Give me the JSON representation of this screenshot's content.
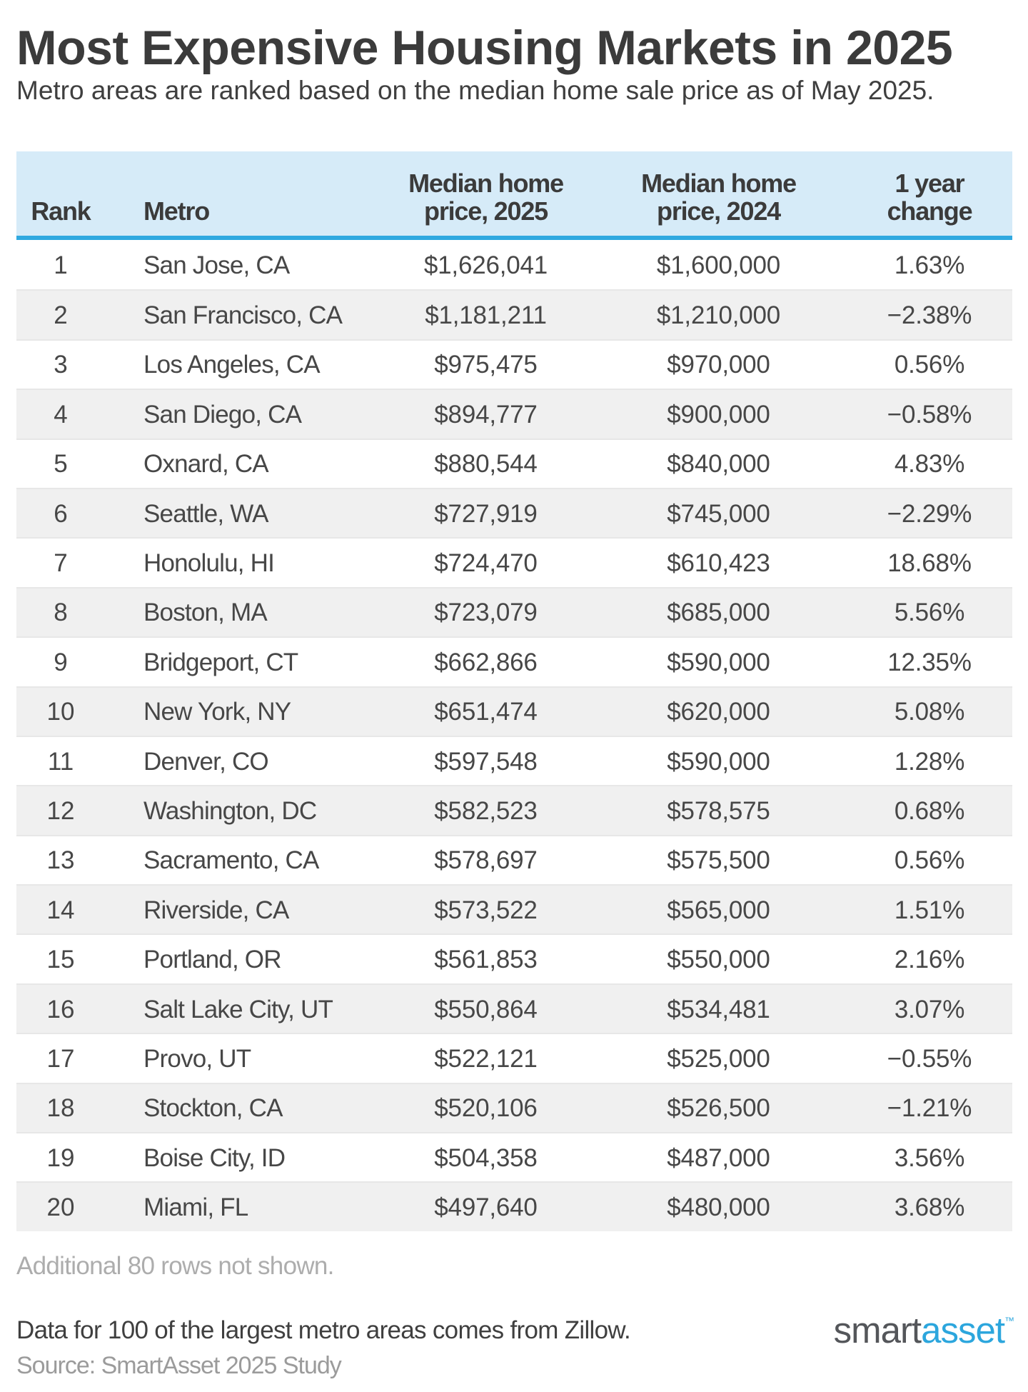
{
  "header": {
    "title": "Most Expensive Housing Markets in 2025",
    "subtitle": "Metro areas are ranked based on the median home sale price as of May 2025."
  },
  "chart_data": {
    "type": "table",
    "title": "Most Expensive Housing Markets in 2025",
    "subtitle": "Metro areas are ranked based on the median home sale price as of May 2025.",
    "columns": [
      "Rank",
      "Metro",
      "Median home\nprice, 2025",
      "Median home\nprice, 2024",
      "1 year\nchange"
    ],
    "rows": [
      [
        "1",
        "San Jose, CA",
        "$1,626,041",
        "$1,600,000",
        "1.63%"
      ],
      [
        "2",
        "San Francisco, CA",
        "$1,181,211",
        "$1,210,000",
        "−2.38%"
      ],
      [
        "3",
        "Los Angeles, CA",
        "$975,475",
        "$970,000",
        "0.56%"
      ],
      [
        "4",
        "San Diego, CA",
        "$894,777",
        "$900,000",
        "−0.58%"
      ],
      [
        "5",
        "Oxnard, CA",
        "$880,544",
        "$840,000",
        "4.83%"
      ],
      [
        "6",
        "Seattle, WA",
        "$727,919",
        "$745,000",
        "−2.29%"
      ],
      [
        "7",
        "Honolulu, HI",
        "$724,470",
        "$610,423",
        "18.68%"
      ],
      [
        "8",
        "Boston, MA",
        "$723,079",
        "$685,000",
        "5.56%"
      ],
      [
        "9",
        "Bridgeport, CT",
        "$662,866",
        "$590,000",
        "12.35%"
      ],
      [
        "10",
        "New York, NY",
        "$651,474",
        "$620,000",
        "5.08%"
      ],
      [
        "11",
        "Denver, CO",
        "$597,548",
        "$590,000",
        "1.28%"
      ],
      [
        "12",
        "Washington, DC",
        "$582,523",
        "$578,575",
        "0.68%"
      ],
      [
        "13",
        "Sacramento, CA",
        "$578,697",
        "$575,500",
        "0.56%"
      ],
      [
        "14",
        "Riverside, CA",
        "$573,522",
        "$565,000",
        "1.51%"
      ],
      [
        "15",
        "Portland, OR",
        "$561,853",
        "$550,000",
        "2.16%"
      ],
      [
        "16",
        "Salt Lake City, UT",
        "$550,864",
        "$534,481",
        "3.07%"
      ],
      [
        "17",
        "Provo, UT",
        "$522,121",
        "$525,000",
        "−0.55%"
      ],
      [
        "18",
        "Stockton, CA",
        "$520,106",
        "$526,500",
        "−1.21%"
      ],
      [
        "19",
        "Boise City, ID",
        "$504,358",
        "$487,000",
        "3.56%"
      ],
      [
        "20",
        "Miami, FL",
        "$497,640",
        "$480,000",
        "3.68%"
      ]
    ],
    "legend": null,
    "grid": false
  },
  "footer": {
    "note": "Additional 80 rows not shown.",
    "data_note": "Data for 100 of the largest metro areas comes from Zillow.",
    "source": "Source: SmartAsset 2025 Study"
  },
  "logo": {
    "part1": "smart",
    "part2": "asset",
    "tm": "™"
  },
  "colors": {
    "header_bg": "#d6ebf8",
    "header_border": "#30a9e0",
    "row_alt_bg": "#f0f0f0",
    "text": "#474747",
    "muted": "#adadad",
    "source": "#9b9b9b",
    "logo_gray": "#54565a",
    "logo_blue": "#2ca6dd"
  }
}
